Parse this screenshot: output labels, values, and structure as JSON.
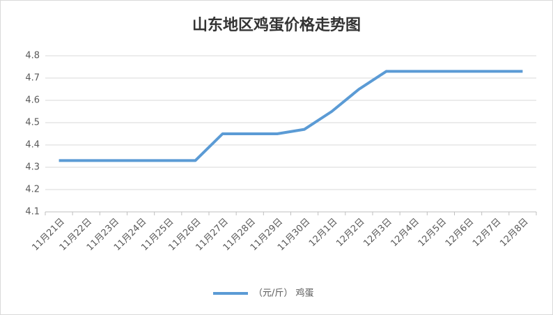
{
  "chart_data": {
    "type": "line",
    "title": "山东地区鸡蛋价格走势图",
    "categories": [
      "11月21日",
      "11月22日",
      "11月23日",
      "11月24日",
      "11月25日",
      "11月26日",
      "11月27日",
      "11月28日",
      "11月29日",
      "11月30日",
      "12月1日",
      "12月2日",
      "12月3日",
      "12月4日",
      "12月5日",
      "12月6日",
      "12月7日",
      "12月8日"
    ],
    "series": [
      {
        "name": "（元/斤） 鸡蛋",
        "color": "#5b9bd5",
        "values": [
          4.33,
          4.33,
          4.33,
          4.33,
          4.33,
          4.33,
          4.45,
          4.45,
          4.45,
          4.47,
          4.55,
          4.65,
          4.73,
          4.73,
          4.73,
          4.73,
          4.73,
          4.73
        ]
      }
    ],
    "ylim": [
      4.1,
      4.8
    ],
    "yticks": [
      4.1,
      4.2,
      4.3,
      4.4,
      4.5,
      4.6,
      4.7,
      4.8
    ],
    "grid": true,
    "legend": "bottom"
  }
}
